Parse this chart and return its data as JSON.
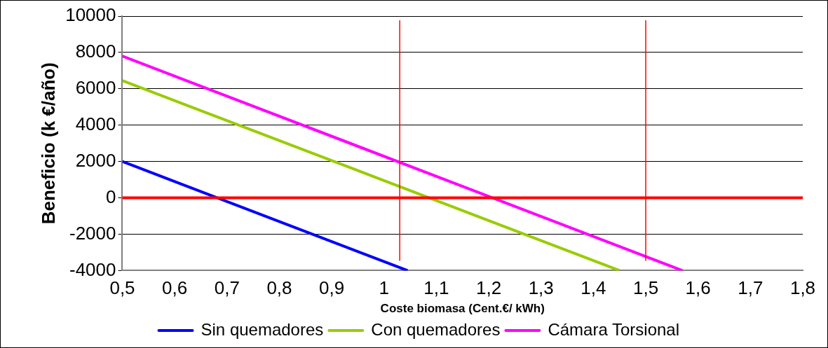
{
  "chart_data": {
    "type": "line",
    "xlabel": "Coste biomasa (Cent.€/ kWh)",
    "ylabel": "Beneficio (k €/año)",
    "xlim": [
      0.5,
      1.8
    ],
    "xticks": [
      {
        "value": 0.5,
        "label": "0,5"
      },
      {
        "value": 0.6,
        "label": "0,6"
      },
      {
        "value": 0.7,
        "label": "0,7"
      },
      {
        "value": 0.8,
        "label": "0,8"
      },
      {
        "value": 0.9,
        "label": "0,9"
      },
      1,
      {
        "value": 1.1,
        "label": "1,1"
      },
      {
        "value": 1.2,
        "label": "1,2"
      },
      {
        "value": 1.3,
        "label": "1,3"
      },
      {
        "value": 1.4,
        "label": "1,4"
      },
      {
        "value": 1.5,
        "label": "1,5"
      },
      {
        "value": 1.6,
        "label": "1,6"
      },
      {
        "value": 1.7,
        "label": "1,7"
      },
      {
        "value": 1.8,
        "label": "1,8"
      }
    ],
    "ylim": [
      -4000,
      10000
    ],
    "yticks": [
      -4000,
      -2000,
      0,
      2000,
      4000,
      6000,
      8000,
      10000
    ],
    "grid": "y",
    "legend": "bottom",
    "marker": "none",
    "line_style": "solid",
    "series": [
      {
        "name": "Sin quemadores",
        "color": "#0000ff",
        "x": [
          0.5,
          1.045
        ],
        "values": [
          2000,
          -4000
        ]
      },
      {
        "name": "Con quemadores",
        "color": "#99cc00",
        "x": [
          0.5,
          1.45
        ],
        "values": [
          6450,
          -4000
        ]
      },
      {
        "name": "Cámara Torsional",
        "color": "#ff00ff",
        "x": [
          0.5,
          1.57
        ],
        "values": [
          7800,
          -4000
        ]
      }
    ],
    "ref_lines": [
      {
        "axis": "y",
        "value": 0,
        "color": "#ff0000"
      },
      {
        "axis": "x",
        "value": 1.03,
        "color": "#ff0000"
      },
      {
        "axis": "x",
        "value": 1.5,
        "color": "#ff0000"
      }
    ]
  }
}
